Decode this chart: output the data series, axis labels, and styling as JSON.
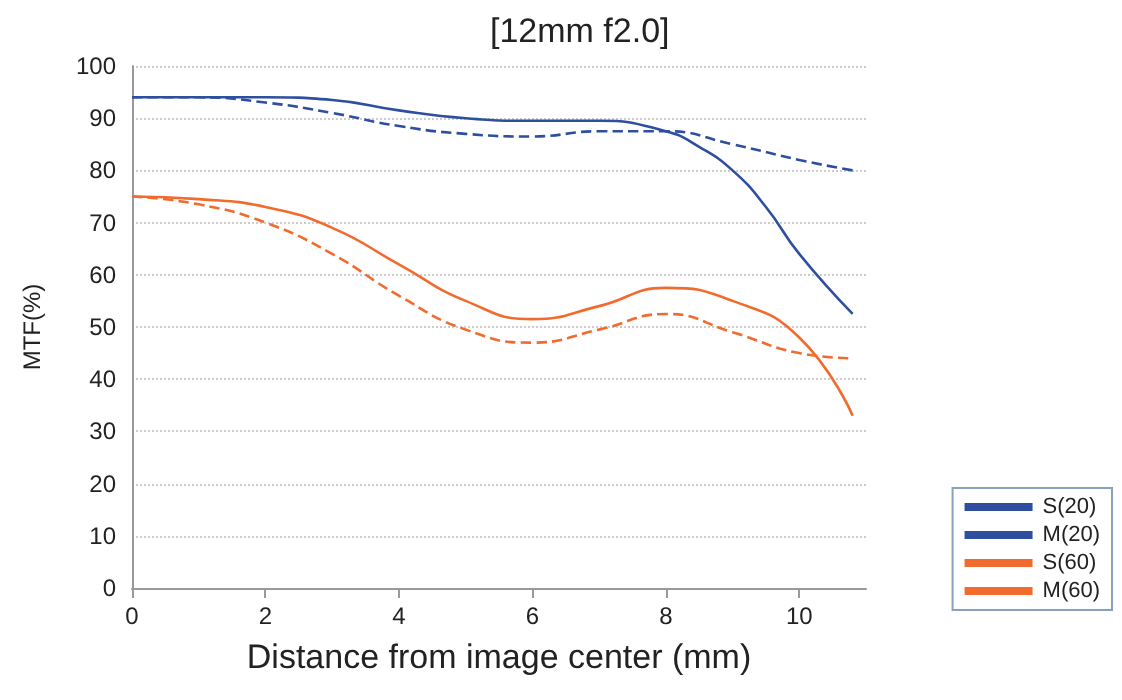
{
  "chart_data": {
    "type": "line",
    "title": "[12mm f2.0]",
    "xlabel": "Distance from image center (mm)",
    "ylabel": "MTF(%)",
    "xlim": [
      0,
      11
    ],
    "xticks": [
      0,
      2,
      4,
      6,
      8,
      10
    ],
    "ylim": [
      0,
      100
    ],
    "yticks": [
      0,
      10,
      20,
      30,
      40,
      50,
      60,
      70,
      80,
      90,
      100
    ],
    "grid": "y",
    "legend": "bottom right",
    "marker": "none",
    "series": [
      {
        "name": "S(20)",
        "color": "#2e4fa0",
        "line_style": "solid",
        "x": [
          0,
          1,
          2,
          3,
          4,
          5,
          6,
          7,
          8,
          8.5,
          9,
          9.5,
          10,
          10.8
        ],
        "values": [
          94,
          94,
          94,
          93.5,
          91.5,
          90,
          89.5,
          89.5,
          87.5,
          84.5,
          80,
          73,
          64,
          52.5
        ]
      },
      {
        "name": "M(20)",
        "color": "#2e4fa0",
        "line_style": "dashed",
        "x": [
          0,
          1,
          2,
          3,
          4,
          5,
          6,
          7,
          8,
          9,
          10,
          10.8
        ],
        "values": [
          94,
          94,
          93,
          91,
          88.5,
          87,
          86.5,
          87.5,
          87.5,
          85,
          82,
          80
        ]
      },
      {
        "name": "S(60)",
        "color": "#f26b2e",
        "line_style": "solid",
        "x": [
          0,
          1,
          2,
          3,
          4,
          5,
          6,
          7,
          8,
          9,
          10,
          10.8
        ],
        "values": [
          75,
          74.5,
          73,
          69,
          62,
          55,
          51.5,
          54,
          57.5,
          55,
          48,
          33
        ]
      },
      {
        "name": "M(60)",
        "color": "#f26b2e",
        "line_style": "dashed",
        "x": [
          0,
          1,
          2,
          3,
          4,
          5,
          6,
          7,
          8,
          9,
          10,
          10.8
        ],
        "values": [
          75,
          73.5,
          70,
          64,
          56,
          49.5,
          47,
          49.5,
          52.5,
          49,
          45,
          44
        ]
      }
    ]
  }
}
